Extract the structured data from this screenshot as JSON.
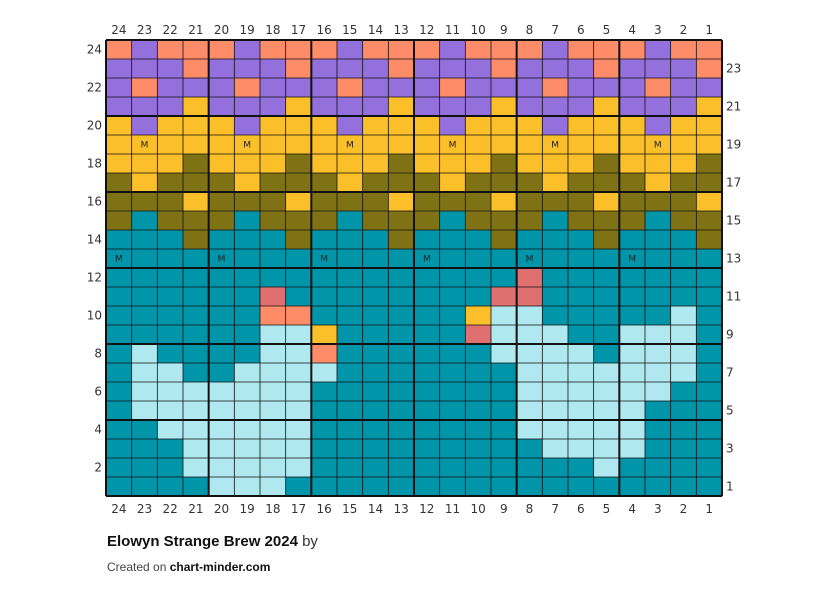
{
  "chart": {
    "title": "Elowyn Strange Brew 2024",
    "by_label": "by",
    "created_on_label": "Created on",
    "site": "chart-minder.com",
    "columns": 24,
    "rows": 24,
    "column_labels": [
      "24",
      "23",
      "22",
      "21",
      "20",
      "19",
      "18",
      "17",
      "16",
      "15",
      "14",
      "13",
      "12",
      "11",
      "10",
      "9",
      "8",
      "7",
      "6",
      "5",
      "4",
      "3",
      "2",
      "1"
    ],
    "row_labels_left": [
      "24",
      "22",
      "20",
      "18",
      "16",
      "14",
      "12",
      "10",
      "8",
      "6",
      "4",
      "2"
    ],
    "row_labels_right": [
      "23",
      "21",
      "19",
      "17",
      "15",
      "13",
      "11",
      "9",
      "7",
      "5",
      "3",
      "1"
    ],
    "symbol": "M",
    "palette": {
      "P": "#9370db",
      "O": "#ff8c69",
      "Y": "#fbbf2a",
      "L": "#7f7214",
      "T": "#0095a8",
      "B": "#b0e8f0",
      "R": "#e06f6f"
    },
    "grid_rows_top_to_bottom": [
      "OPOOOPOOOPOOOPOOOPOOOPOO",
      "PPPOPPPOPPPOPPPOPPPOPPPO",
      "POPPPOPPPOPPPOPPPOPPPOPP",
      "PPPYPPPYPPPYPPPYPPPYPPPY",
      "YPYYYPYYYPYYYPYYYPYYYPYY",
      "YYYYYYYYYYYYYYYYYYYYYYYY",
      "YYYLYYYLYYYLYYYLYYYLYYYL",
      "LYLLLYLLLYLLLYLLLYLLLYLL",
      "LLLYLLLYLLLYLLLYLLLYLLLY",
      "LTLLLTLLLTLLLTLLLTLLLTLL",
      "TTTLTTTLTTTLTTTLTTTLTTTL",
      "TTTTTTTTTTTTTTTTTTTTTTTT",
      "TTTTTTTTTTTTTTTTRTTTTTTT",
      "TTTTTTRTTTTTTTTRRTTTTTTT",
      "TTTTTTOOTTTTTTYBBTTTTTBT",
      "TTTTTTBBYTTTTTRBBBTTBBBT",
      "TBTTTTBBOTTTTTTBBBBTBBBT",
      "TBBTTBBBBTTTTTTTBBBBBBBT",
      "TBBBBBBBTTTTTTTTBBBBBBTT",
      "TBBBBBBBTTTTTTTTBBBBBTTT",
      "TTBBBBBBTTTTTTTTBBBBBTTT",
      "TTTBBBBBTTTTTTTTTBBBBTTT",
      "TTTBBBBBTTTTTTTTTTTBTTTT",
      "TTTTBBBTTTTTTTTTTTTTTTTT"
    ],
    "symbol_rows_top_to_bottom": [
      "........................",
      "........................",
      "........................",
      "........................",
      "........................",
      ".M...M...M...M...M...M..",
      "........................",
      "........................",
      "........................",
      "........................",
      "........................",
      "M...M...M...M...M...M...",
      "........................",
      "........................",
      "........................",
      "........................",
      "........................",
      "........................",
      "........................",
      "........................",
      "........................",
      "........................",
      "........................",
      "........................"
    ]
  }
}
